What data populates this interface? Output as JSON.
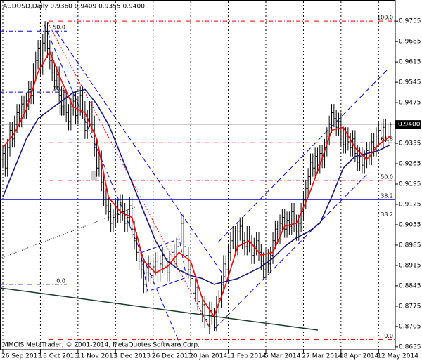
{
  "chart_data": {
    "type": "ohlc",
    "title": "AUDUSD,Daily  0.9360 0.9409 0.9355 0.9400",
    "copyright": "MMCIS MetaTrader, © 2001-2014, MetaQuotes Software Corp.",
    "bar_color": "#000000",
    "xlim": [
      -1.2,
      167.1
    ],
    "ylim": [
      0.8625,
      0.9823
    ],
    "xticks": [
      {
        "value": 0,
        "label": "26 Sep 2013"
      },
      {
        "value": 16,
        "label": "18 Oct 2013"
      },
      {
        "value": 32,
        "label": "11 Nov 2013"
      },
      {
        "value": 48,
        "label": "3 Dec 2013"
      },
      {
        "value": 64,
        "label": "26 Dec 2013"
      },
      {
        "value": 80,
        "label": "20 Jan 2014"
      },
      {
        "value": 96,
        "label": "11 Feb 2014"
      },
      {
        "value": 112,
        "label": "5 Mar 2014"
      },
      {
        "value": 128,
        "label": "27 Mar 2014"
      },
      {
        "value": 144,
        "label": "18 Apr 2014"
      },
      {
        "value": 160,
        "label": "12 May 2014"
      }
    ],
    "yticks": [
      0.9755,
      0.9685,
      0.9615,
      0.9545,
      0.9475,
      0.9335,
      0.9265,
      0.9195,
      0.9125,
      0.9055,
      0.8985,
      0.8915,
      0.8845,
      0.8775,
      0.8705,
      0.8635
    ],
    "grid": true,
    "current_price": {
      "value": 0.94,
      "label": "0.9400"
    },
    "open": [
      0.928,
      0.93,
      0.925,
      0.932,
      0.938,
      0.935,
      0.94,
      0.944,
      0.942,
      0.947,
      0.945,
      0.948,
      0.952,
      0.95,
      0.958,
      0.962,
      0.966,
      0.96,
      0.968,
      0.972,
      0.966,
      0.962,
      0.958,
      0.955,
      0.957,
      0.95,
      0.946,
      0.949,
      0.944,
      0.941,
      0.946,
      0.948,
      0.943,
      0.946,
      0.95,
      0.945,
      0.938,
      0.942,
      0.945,
      0.94,
      0.932,
      0.925,
      0.928,
      0.92,
      0.915,
      0.912,
      0.91,
      0.906,
      0.908,
      0.911,
      0.909,
      0.913,
      0.91,
      0.906,
      0.908,
      0.912,
      0.904,
      0.9,
      0.896,
      0.893,
      0.89,
      0.885,
      0.889,
      0.892,
      0.888,
      0.891,
      0.893,
      0.889,
      0.892,
      0.895,
      0.891,
      0.889,
      0.893,
      0.896,
      0.894,
      0.898,
      0.902,
      0.906,
      0.898,
      0.895,
      0.89,
      0.887,
      0.882,
      0.884,
      0.879,
      0.875,
      0.878,
      0.873,
      0.871,
      0.876,
      0.874,
      0.872,
      0.878,
      0.88,
      0.885,
      0.892,
      0.89,
      0.896,
      0.9,
      0.902,
      0.898,
      0.903,
      0.905,
      0.9,
      0.898,
      0.902,
      0.899,
      0.895,
      0.898,
      0.9,
      0.896,
      0.893,
      0.89,
      0.894,
      0.892,
      0.895,
      0.9,
      0.904,
      0.902,
      0.906,
      0.908,
      0.904,
      0.907,
      0.905,
      0.91,
      0.906,
      0.903,
      0.906,
      0.91,
      0.914,
      0.918,
      0.922,
      0.927,
      0.925,
      0.929,
      0.926,
      0.93,
      0.928,
      0.932,
      0.936,
      0.94,
      0.944,
      0.942,
      0.939,
      0.941,
      0.936,
      0.933,
      0.936,
      0.934,
      0.932,
      0.935,
      0.93,
      0.927,
      0.929,
      0.926,
      0.928,
      0.931,
      0.929,
      0.934,
      0.932,
      0.936,
      0.938,
      0.935,
      0.939,
      0.937,
      0.936
    ],
    "high": [
      0.933,
      0.933,
      0.935,
      0.941,
      0.941,
      0.943,
      0.947,
      0.947,
      0.95,
      0.95,
      0.951,
      0.955,
      0.955,
      0.961,
      0.965,
      0.969,
      0.969,
      0.971,
      0.9755,
      0.975,
      0.969,
      0.965,
      0.961,
      0.96,
      0.96,
      0.953,
      0.952,
      0.952,
      0.947,
      0.949,
      0.951,
      0.951,
      0.949,
      0.953,
      0.953,
      0.948,
      0.945,
      0.948,
      0.948,
      0.943,
      0.935,
      0.931,
      0.931,
      0.923,
      0.918,
      0.915,
      0.913,
      0.911,
      0.914,
      0.914,
      0.916,
      0.916,
      0.913,
      0.911,
      0.915,
      0.915,
      0.907,
      0.903,
      0.899,
      0.896,
      0.893,
      0.892,
      0.895,
      0.895,
      0.894,
      0.896,
      0.896,
      0.895,
      0.898,
      0.898,
      0.894,
      0.896,
      0.899,
      0.899,
      0.901,
      0.905,
      0.909,
      0.909,
      0.901,
      0.898,
      0.893,
      0.89,
      0.887,
      0.887,
      0.882,
      0.881,
      0.881,
      0.876,
      0.879,
      0.879,
      0.877,
      0.881,
      0.883,
      0.888,
      0.895,
      0.895,
      0.899,
      0.903,
      0.905,
      0.905,
      0.906,
      0.908,
      0.908,
      0.903,
      0.905,
      0.905,
      0.902,
      0.901,
      0.903,
      0.903,
      0.899,
      0.896,
      0.897,
      0.897,
      0.898,
      0.903,
      0.907,
      0.907,
      0.909,
      0.911,
      0.911,
      0.91,
      0.91,
      0.913,
      0.913,
      0.909,
      0.909,
      0.913,
      0.917,
      0.921,
      0.925,
      0.93,
      0.93,
      0.932,
      0.932,
      0.933,
      0.933,
      0.935,
      0.939,
      0.943,
      0.947,
      0.947,
      0.945,
      0.944,
      0.944,
      0.939,
      0.939,
      0.939,
      0.937,
      0.938,
      0.938,
      0.933,
      0.932,
      0.932,
      0.931,
      0.934,
      0.934,
      0.937,
      0.937,
      0.939,
      0.941,
      0.941,
      0.942,
      0.942,
      0.94,
      0.9409
    ],
    "low": [
      0.925,
      0.922,
      0.922,
      0.929,
      0.932,
      0.932,
      0.937,
      0.939,
      0.939,
      0.942,
      0.942,
      0.945,
      0.947,
      0.947,
      0.955,
      0.959,
      0.957,
      0.957,
      0.965,
      0.963,
      0.959,
      0.955,
      0.952,
      0.952,
      0.947,
      0.943,
      0.943,
      0.941,
      0.938,
      0.938,
      0.943,
      0.94,
      0.94,
      0.943,
      0.942,
      0.935,
      0.935,
      0.939,
      0.937,
      0.929,
      0.922,
      0.922,
      0.917,
      0.912,
      0.909,
      0.907,
      0.903,
      0.903,
      0.905,
      0.906,
      0.906,
      0.907,
      0.903,
      0.903,
      0.905,
      0.901,
      0.897,
      0.893,
      0.89,
      0.887,
      0.882,
      0.882,
      0.886,
      0.885,
      0.885,
      0.888,
      0.886,
      0.886,
      0.889,
      0.888,
      0.886,
      0.886,
      0.89,
      0.891,
      0.891,
      0.895,
      0.899,
      0.895,
      0.892,
      0.887,
      0.884,
      0.879,
      0.879,
      0.876,
      0.872,
      0.872,
      0.87,
      0.866,
      0.868,
      0.871,
      0.869,
      0.869,
      0.875,
      0.877,
      0.882,
      0.887,
      0.887,
      0.893,
      0.897,
      0.895,
      0.895,
      0.9,
      0.897,
      0.895,
      0.895,
      0.896,
      0.892,
      0.892,
      0.895,
      0.893,
      0.89,
      0.887,
      0.887,
      0.889,
      0.889,
      0.892,
      0.897,
      0.899,
      0.899,
      0.903,
      0.901,
      0.901,
      0.902,
      0.902,
      0.903,
      0.9,
      0.9,
      0.903,
      0.907,
      0.911,
      0.915,
      0.919,
      0.922,
      0.922,
      0.923,
      0.923,
      0.925,
      0.925,
      0.929,
      0.933,
      0.937,
      0.939,
      0.936,
      0.936,
      0.933,
      0.93,
      0.93,
      0.931,
      0.929,
      0.929,
      0.927,
      0.924,
      0.924,
      0.923,
      0.923,
      0.925,
      0.926,
      0.926,
      0.929,
      0.929,
      0.933,
      0.932,
      0.932,
      0.934,
      0.933,
      0.9355
    ],
    "close": [
      0.93,
      0.925,
      0.932,
      0.938,
      0.935,
      0.94,
      0.944,
      0.942,
      0.947,
      0.945,
      0.948,
      0.952,
      0.95,
      0.958,
      0.962,
      0.966,
      0.96,
      0.968,
      0.972,
      0.966,
      0.962,
      0.958,
      0.955,
      0.957,
      0.95,
      0.946,
      0.949,
      0.944,
      0.941,
      0.946,
      0.948,
      0.943,
      0.946,
      0.95,
      0.945,
      0.938,
      0.942,
      0.945,
      0.94,
      0.932,
      0.925,
      0.928,
      0.92,
      0.915,
      0.912,
      0.91,
      0.906,
      0.908,
      0.911,
      0.909,
      0.913,
      0.91,
      0.906,
      0.908,
      0.912,
      0.904,
      0.9,
      0.896,
      0.893,
      0.89,
      0.885,
      0.889,
      0.892,
      0.888,
      0.891,
      0.893,
      0.889,
      0.892,
      0.895,
      0.891,
      0.889,
      0.893,
      0.896,
      0.894,
      0.898,
      0.902,
      0.906,
      0.898,
      0.895,
      0.89,
      0.887,
      0.882,
      0.884,
      0.879,
      0.875,
      0.878,
      0.873,
      0.871,
      0.876,
      0.874,
      0.872,
      0.878,
      0.88,
      0.885,
      0.892,
      0.89,
      0.896,
      0.9,
      0.902,
      0.898,
      0.903,
      0.905,
      0.9,
      0.898,
      0.902,
      0.899,
      0.895,
      0.898,
      0.9,
      0.896,
      0.893,
      0.89,
      0.894,
      0.892,
      0.895,
      0.9,
      0.904,
      0.902,
      0.906,
      0.908,
      0.904,
      0.907,
      0.905,
      0.91,
      0.906,
      0.903,
      0.906,
      0.91,
      0.914,
      0.918,
      0.922,
      0.927,
      0.925,
      0.929,
      0.926,
      0.93,
      0.928,
      0.932,
      0.936,
      0.94,
      0.944,
      0.942,
      0.939,
      0.941,
      0.936,
      0.933,
      0.936,
      0.934,
      0.932,
      0.935,
      0.93,
      0.927,
      0.929,
      0.926,
      0.928,
      0.931,
      0.929,
      0.934,
      0.932,
      0.936,
      0.938,
      0.935,
      0.939,
      0.937,
      0.936,
      0.94
    ],
    "moving_averages": [
      {
        "color": "#ff0000",
        "x": [
          0,
          5,
          10,
          15,
          20,
          25,
          30,
          35,
          40,
          45,
          50,
          55,
          60,
          65,
          70,
          75,
          80,
          85,
          90,
          95,
          100,
          105,
          110,
          115,
          120,
          125,
          130,
          135,
          140,
          145,
          150,
          155,
          160,
          165
        ],
        "values": [
          0.932,
          0.937,
          0.945,
          0.958,
          0.965,
          0.955,
          0.946,
          0.944,
          0.935,
          0.915,
          0.91,
          0.908,
          0.893,
          0.889,
          0.891,
          0.896,
          0.893,
          0.88,
          0.874,
          0.885,
          0.898,
          0.9,
          0.895,
          0.896,
          0.905,
          0.906,
          0.915,
          0.926,
          0.938,
          0.939,
          0.932,
          0.928,
          0.933,
          0.936
        ]
      },
      {
        "color": "#191970",
        "x": [
          0,
          5,
          10,
          15,
          20,
          25,
          30,
          35,
          40,
          45,
          50,
          55,
          60,
          65,
          70,
          75,
          80,
          85,
          90,
          95,
          100,
          105,
          110,
          115,
          120,
          125,
          130,
          135,
          140,
          145,
          150,
          155,
          160,
          165
        ],
        "values": [
          0.915,
          0.925,
          0.935,
          0.942,
          0.945,
          0.948,
          0.951,
          0.952,
          0.947,
          0.94,
          0.93,
          0.92,
          0.91,
          0.9,
          0.893,
          0.89,
          0.888,
          0.887,
          0.885,
          0.886,
          0.887,
          0.889,
          0.891,
          0.894,
          0.898,
          0.901,
          0.903,
          0.906,
          0.915,
          0.925,
          0.929,
          0.93,
          0.931,
          0.933
        ]
      }
    ],
    "fibo_levels": [
      {
        "level": "100.0",
        "price": 0.9755,
        "color": "#ff0000"
      },
      {
        "level": "61.8",
        "price": 0.9337,
        "color": "#ff0000"
      },
      {
        "level": "50.0",
        "price": 0.92075,
        "color": "#ff0000"
      },
      {
        "level": "38.2",
        "price": 0.9078,
        "color": "#ff0000"
      },
      {
        "level": "0.0",
        "price": 0.866,
        "color": "#ff0000"
      }
    ],
    "old_fibo_levels": [
      {
        "level": "50.0",
        "price": 0.9721,
        "color": "#0000cc"
      },
      {
        "level": "38.2",
        "price": 0.9511,
        "color": "#0000cc"
      },
      {
        "level": "0.0",
        "price": 0.885,
        "color": "#0000cc"
      }
    ],
    "horizontal_line": {
      "level": "38.2",
      "price": 0.9142,
      "color": "#0000cc"
    }
  }
}
